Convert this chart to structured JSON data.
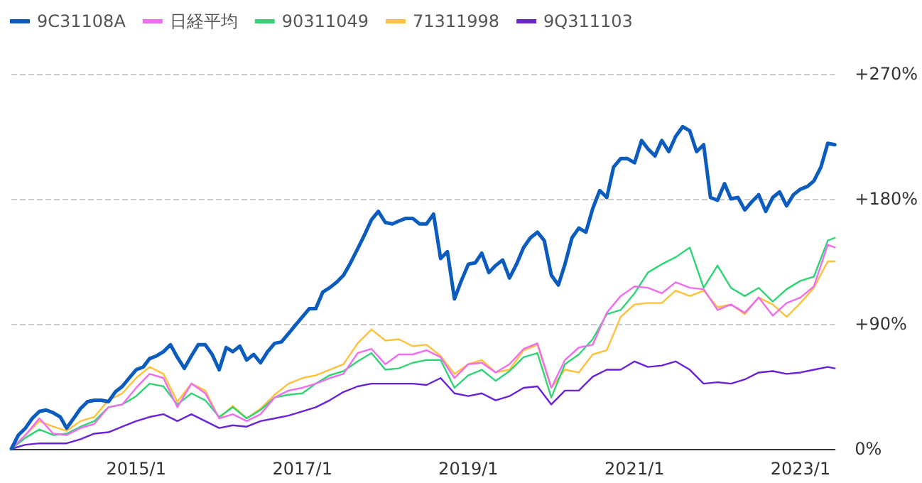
{
  "chart_data": {
    "type": "line",
    "legend": "top left",
    "grid": "y",
    "marker": "none",
    "line_style": "solid",
    "xlim": [
      "2013-07",
      "2023-06"
    ],
    "ylim": [
      0,
      270
    ],
    "xticks": [
      {
        "value": "2015-01",
        "label": "2015/1"
      },
      {
        "value": "2017-01",
        "label": "2017/1"
      },
      {
        "value": "2019-01",
        "label": "2019/1"
      },
      {
        "value": "2021-01",
        "label": "2021/1"
      },
      {
        "value": "2023-01",
        "label": "2023/1"
      }
    ],
    "yticks": [
      {
        "value": 0,
        "label": "0%"
      },
      {
        "value": 90,
        "label": "+90%"
      },
      {
        "value": 180,
        "label": "+180%"
      },
      {
        "value": 270,
        "label": "+270%"
      }
    ],
    "x": [
      "2013-07",
      "2013-08",
      "2013-09",
      "2013-10",
      "2013-11",
      "2013-12",
      "2014-01",
      "2014-02",
      "2014-03",
      "2014-04",
      "2014-05",
      "2014-06",
      "2014-07",
      "2014-08",
      "2014-09",
      "2014-10",
      "2014-11",
      "2014-12",
      "2015-01",
      "2015-02",
      "2015-03",
      "2015-04",
      "2015-05",
      "2015-06",
      "2015-07",
      "2015-08",
      "2015-09",
      "2015-10",
      "2015-11",
      "2015-12",
      "2016-01",
      "2016-02",
      "2016-03",
      "2016-04",
      "2016-05",
      "2016-06",
      "2016-07",
      "2016-08",
      "2016-09",
      "2016-10",
      "2016-11",
      "2016-12",
      "2017-01",
      "2017-02",
      "2017-03",
      "2017-04",
      "2017-05",
      "2017-06",
      "2017-07",
      "2017-08",
      "2017-09",
      "2017-10",
      "2017-11",
      "2017-12",
      "2018-01",
      "2018-02",
      "2018-03",
      "2018-04",
      "2018-05",
      "2018-06",
      "2018-07",
      "2018-08",
      "2018-09",
      "2018-10",
      "2018-11",
      "2018-12",
      "2019-01",
      "2019-02",
      "2019-03",
      "2019-04",
      "2019-05",
      "2019-06",
      "2019-07",
      "2019-08",
      "2019-09",
      "2019-10",
      "2019-11",
      "2019-12",
      "2020-01",
      "2020-02",
      "2020-03",
      "2020-04",
      "2020-05",
      "2020-06",
      "2020-07",
      "2020-08",
      "2020-09",
      "2020-10",
      "2020-11",
      "2020-12",
      "2021-01",
      "2021-02",
      "2021-03",
      "2021-04",
      "2021-05",
      "2021-06",
      "2021-07",
      "2021-08",
      "2021-09",
      "2021-10",
      "2021-11",
      "2021-12",
      "2022-01",
      "2022-02",
      "2022-03",
      "2022-04",
      "2022-05",
      "2022-06",
      "2022-07",
      "2022-08",
      "2022-09",
      "2022-10",
      "2022-11",
      "2022-12",
      "2023-01",
      "2023-02",
      "2023-03",
      "2023-04",
      "2023-05",
      "2023-06"
    ],
    "series": [
      {
        "name": "9C31108A",
        "color": "#0b5cbe",
        "values": [
          0,
          10,
          15,
          22,
          27,
          28,
          26,
          23,
          15,
          22,
          29,
          34,
          35,
          35,
          34,
          41,
          45,
          51,
          57,
          59,
          65,
          67,
          70,
          75,
          66,
          58,
          67,
          75,
          75,
          68,
          57,
          73,
          70,
          74,
          64,
          68,
          62,
          70,
          76,
          77,
          83,
          89,
          95,
          101,
          101,
          113,
          116,
          120,
          125,
          134,
          144,
          154,
          165,
          171,
          163,
          162,
          164,
          166,
          166,
          162,
          162,
          169,
          137,
          142,
          108,
          121,
          133,
          134,
          141,
          127,
          132,
          136,
          123,
          133,
          145,
          152,
          156,
          150,
          125,
          118,
          133,
          152,
          159,
          156,
          173,
          186,
          181,
          203,
          209,
          209,
          206,
          222,
          216,
          211,
          222,
          214,
          225,
          232,
          229,
          214,
          219,
          181,
          179,
          191,
          180,
          181,
          172,
          178,
          183,
          171,
          181,
          185,
          175,
          183,
          187,
          189,
          193,
          203,
          220,
          219
        ]
      },
      {
        "name": "日経平均",
        "color": "#f06cf0",
        "x": [
          "2013-07",
          "2013-09",
          "2013-11",
          "2014-01",
          "2014-03",
          "2014-05",
          "2014-07",
          "2014-09",
          "2014-11",
          "2015-01",
          "2015-03",
          "2015-05",
          "2015-07",
          "2015-09",
          "2015-11",
          "2016-01",
          "2016-03",
          "2016-05",
          "2016-07",
          "2016-09",
          "2016-11",
          "2017-01",
          "2017-03",
          "2017-05",
          "2017-07",
          "2017-09",
          "2017-11",
          "2018-01",
          "2018-03",
          "2018-05",
          "2018-07",
          "2018-09",
          "2018-11",
          "2019-01",
          "2019-03",
          "2019-05",
          "2019-07",
          "2019-09",
          "2019-11",
          "2020-01",
          "2020-03",
          "2020-05",
          "2020-07",
          "2020-09",
          "2020-11",
          "2021-01",
          "2021-03",
          "2021-05",
          "2021-07",
          "2021-09",
          "2021-11",
          "2022-01",
          "2022-03",
          "2022-05",
          "2022-07",
          "2022-09",
          "2022-11",
          "2023-01",
          "2023-03",
          "2023-05",
          "2023-06"
        ],
        "values": [
          0,
          10,
          22,
          11,
          10,
          15,
          18,
          30,
          32,
          44,
          54,
          51,
          30,
          47,
          40,
          22,
          25,
          20,
          25,
          37,
          42,
          44,
          47,
          51,
          54,
          69,
          72,
          61,
          68,
          68,
          71,
          66,
          51,
          61,
          62,
          55,
          61,
          72,
          76,
          44,
          64,
          73,
          75,
          98,
          110,
          117,
          116,
          112,
          120,
          116,
          115,
          100,
          104,
          98,
          109,
          96,
          105,
          109,
          117,
          147,
          145
        ]
      },
      {
        "name": "90311049",
        "color": "#2fd474",
        "x": [
          "2013-07",
          "2013-09",
          "2013-11",
          "2014-01",
          "2014-03",
          "2014-05",
          "2014-07",
          "2014-09",
          "2014-11",
          "2015-01",
          "2015-03",
          "2015-05",
          "2015-07",
          "2015-09",
          "2015-11",
          "2016-01",
          "2016-03",
          "2016-05",
          "2016-07",
          "2016-09",
          "2016-11",
          "2017-01",
          "2017-03",
          "2017-05",
          "2017-07",
          "2017-09",
          "2017-11",
          "2018-01",
          "2018-03",
          "2018-05",
          "2018-07",
          "2018-09",
          "2018-11",
          "2019-01",
          "2019-03",
          "2019-05",
          "2019-07",
          "2019-09",
          "2019-11",
          "2020-01",
          "2020-03",
          "2020-05",
          "2020-07",
          "2020-09",
          "2020-11",
          "2021-01",
          "2021-03",
          "2021-05",
          "2021-07",
          "2021-09",
          "2021-11",
          "2022-01",
          "2022-03",
          "2022-05",
          "2022-07",
          "2022-09",
          "2022-11",
          "2023-01",
          "2023-03",
          "2023-05",
          "2023-06"
        ],
        "values": [
          0,
          8,
          14,
          10,
          11,
          16,
          20,
          30,
          32,
          38,
          47,
          45,
          32,
          40,
          35,
          23,
          30,
          22,
          28,
          37,
          39,
          40,
          47,
          53,
          56,
          63,
          69,
          57,
          58,
          62,
          64,
          64,
          44,
          53,
          57,
          49,
          56,
          66,
          69,
          37,
          61,
          68,
          79,
          97,
          100,
          112,
          127,
          133,
          138,
          145,
          116,
          132,
          116,
          110,
          116,
          106,
          115,
          121,
          124,
          150,
          152
        ]
      },
      {
        "name": "71311998",
        "color": "#ffc13b",
        "x": [
          "2013-07",
          "2013-09",
          "2013-11",
          "2014-01",
          "2014-03",
          "2014-05",
          "2014-07",
          "2014-09",
          "2014-11",
          "2015-01",
          "2015-03",
          "2015-05",
          "2015-07",
          "2015-09",
          "2015-11",
          "2016-01",
          "2016-03",
          "2016-05",
          "2016-07",
          "2016-09",
          "2016-11",
          "2017-01",
          "2017-03",
          "2017-05",
          "2017-07",
          "2017-09",
          "2017-11",
          "2018-01",
          "2018-03",
          "2018-05",
          "2018-07",
          "2018-09",
          "2018-11",
          "2019-01",
          "2019-03",
          "2019-05",
          "2019-07",
          "2019-09",
          "2019-11",
          "2020-01",
          "2020-03",
          "2020-05",
          "2020-07",
          "2020-09",
          "2020-11",
          "2021-01",
          "2021-03",
          "2021-05",
          "2021-07",
          "2021-09",
          "2021-11",
          "2022-01",
          "2022-03",
          "2022-05",
          "2022-07",
          "2022-09",
          "2022-11",
          "2023-01",
          "2023-03",
          "2023-05",
          "2023-06"
        ],
        "values": [
          0,
          10,
          20,
          16,
          13,
          20,
          23,
          35,
          40,
          51,
          59,
          54,
          34,
          47,
          42,
          22,
          31,
          22,
          29,
          39,
          47,
          51,
          53,
          57,
          61,
          76,
          86,
          78,
          79,
          74,
          75,
          67,
          54,
          61,
          64,
          55,
          57,
          71,
          75,
          44,
          57,
          55,
          68,
          71,
          95,
          104,
          105,
          105,
          114,
          110,
          114,
          102,
          104,
          97,
          109,
          104,
          95,
          105,
          116,
          135,
          135
        ]
      },
      {
        "name": "9Q311103",
        "color": "#6a22d6",
        "x": [
          "2013-07",
          "2013-09",
          "2013-11",
          "2014-01",
          "2014-03",
          "2014-05",
          "2014-07",
          "2014-09",
          "2014-11",
          "2015-01",
          "2015-03",
          "2015-05",
          "2015-07",
          "2015-09",
          "2015-11",
          "2016-01",
          "2016-03",
          "2016-05",
          "2016-07",
          "2016-09",
          "2016-11",
          "2017-01",
          "2017-03",
          "2017-05",
          "2017-07",
          "2017-09",
          "2017-11",
          "2018-01",
          "2018-03",
          "2018-05",
          "2018-07",
          "2018-09",
          "2018-11",
          "2019-01",
          "2019-03",
          "2019-05",
          "2019-07",
          "2019-09",
          "2019-11",
          "2020-01",
          "2020-03",
          "2020-05",
          "2020-07",
          "2020-09",
          "2020-11",
          "2021-01",
          "2021-03",
          "2021-05",
          "2021-07",
          "2021-09",
          "2021-11",
          "2022-01",
          "2022-03",
          "2022-05",
          "2022-07",
          "2022-09",
          "2022-11",
          "2023-01",
          "2023-03",
          "2023-05",
          "2023-06"
        ],
        "values": [
          0,
          3,
          4,
          4,
          4,
          7,
          11,
          12,
          16,
          20,
          23,
          25,
          20,
          25,
          20,
          15,
          17,
          16,
          20,
          22,
          24,
          27,
          30,
          35,
          41,
          45,
          47,
          47,
          47,
          47,
          46,
          51,
          40,
          38,
          40,
          35,
          38,
          44,
          45,
          32,
          42,
          42,
          52,
          57,
          57,
          63,
          59,
          60,
          63,
          57,
          47,
          48,
          47,
          50,
          55,
          56,
          54,
          55,
          57,
          59,
          58
        ]
      }
    ]
  }
}
